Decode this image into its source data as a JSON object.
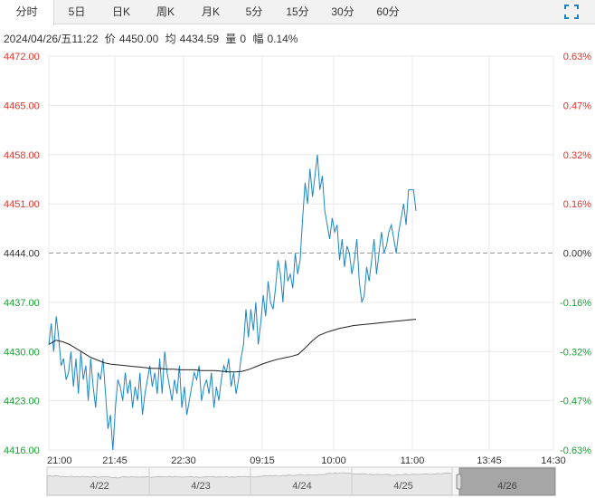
{
  "tabs": [
    {
      "label": "分时",
      "active": true
    },
    {
      "label": "5日"
    },
    {
      "label": "日K"
    },
    {
      "label": "周K"
    },
    {
      "label": "月K"
    },
    {
      "label": "5分"
    },
    {
      "label": "15分"
    },
    {
      "label": "30分"
    },
    {
      "label": "60分"
    }
  ],
  "info": {
    "datetime": "2024/04/26/五11:22",
    "price_label": "价",
    "price": "4450.00",
    "avg_label": "均",
    "avg": "4434.59",
    "vol_label": "量",
    "vol": "0",
    "amp_label": "幅",
    "amp": "0.14%"
  },
  "colors": {
    "up": "#e0332b",
    "down": "#1aa034",
    "price_line": "#1c86c4",
    "avg_line": "#222222",
    "grid": "#e8e8e8",
    "base": "#999999"
  },
  "chart_data": {
    "type": "line",
    "ylim": [
      4416.0,
      4472.0
    ],
    "base": 4444.0,
    "y_ticks": [
      "4472.00",
      "4465.00",
      "4458.00",
      "4451.00",
      "4444.00",
      "4437.00",
      "4430.00",
      "4423.00",
      "4416.00"
    ],
    "pct_ticks": [
      "0.63%",
      "0.47%",
      "0.32%",
      "0.16%",
      "0.00%",
      "-0.16%",
      "-0.32%",
      "-0.47%",
      "-0.63%"
    ],
    "x_ticks": [
      "21:00",
      "21:45",
      "22:30",
      "09:15",
      "10:00",
      "11:00",
      "13:45",
      "14:30"
    ],
    "series": [
      {
        "key": "price",
        "values": [
          4431,
          4434,
          4430,
          4435,
          4432,
          4428,
          4429,
          4426,
          4427,
          4430,
          4425,
          4429,
          4424,
          4430,
          4426,
          4428,
          4423,
          4429,
          4425,
          4422,
          4427,
          4426,
          4429,
          4424,
          4419,
          4421,
          4416,
          4422,
          4426,
          4425,
          4423,
          4427,
          4424,
          4426,
          4422,
          4425,
          4423,
          4427,
          4421,
          4424,
          4426,
          4428,
          4425,
          4427,
          4424,
          4429,
          4424,
          4430,
          4427,
          4425,
          4423,
          4426,
          4424,
          4428,
          4422,
          4425,
          4421,
          4423,
          4425,
          4427,
          4426,
          4428,
          4423,
          4425,
          4426,
          4424,
          4427,
          4422,
          4425,
          4423,
          4426,
          4428,
          4427,
          4429,
          4425,
          4427,
          4424,
          4426,
          4429,
          4431,
          4436,
          4432,
          4436,
          4433,
          4437,
          4431,
          4434,
          4438,
          4435,
          4440,
          4437,
          4436,
          4439,
          4443,
          4441,
          4437,
          4443,
          4440,
          4441,
          4439,
          4444,
          4441,
          4443,
          4449,
          4454,
          4451,
          4456,
          4452,
          4455,
          4458,
          4453,
          4455,
          4450,
          4448,
          4446,
          4449,
          4447,
          4448,
          4443,
          4446,
          4442,
          4445,
          4444,
          4441,
          4443,
          4446,
          4440,
          4437,
          4438,
          4442,
          4440,
          4443,
          4446,
          4441,
          4444,
          4447,
          4444,
          4445,
          4447,
          4448,
          4446,
          4444,
          4447,
          4449,
          4451,
          4448,
          4453,
          4453,
          4453,
          4450
        ],
        "color": "#1c86c4"
      },
      {
        "key": "average",
        "values": [
          4431,
          4431.6,
          4431.4,
          4431,
          4430.4,
          4429.8,
          4429.2,
          4428.8,
          4428.4,
          4428.2,
          4428.1,
          4428,
          4427.9,
          4427.8,
          4427.7,
          4427.6,
          4427.6,
          4427.5,
          4427.5,
          4427.4,
          4427.4,
          4427.4,
          4427.3,
          4427.3,
          4427.3,
          4427.2,
          4427.1,
          4427.1,
          4427.2,
          4427.5,
          4427.9,
          4428.3,
          4428.6,
          4428.9,
          4429.1,
          4429.3,
          4429.6,
          4430.5,
          4431.5,
          4432.3,
          4432.7,
          4433,
          4433.3,
          4433.5,
          4433.7,
          4433.8,
          4433.9,
          4434,
          4434.1,
          4434.2,
          4434.3,
          4434.4,
          4434.5,
          4434.59
        ],
        "color": "#222222"
      }
    ]
  },
  "timeline": {
    "labels": [
      "4/22",
      "4/23",
      "4/24",
      "4/25",
      "4/26"
    ]
  }
}
